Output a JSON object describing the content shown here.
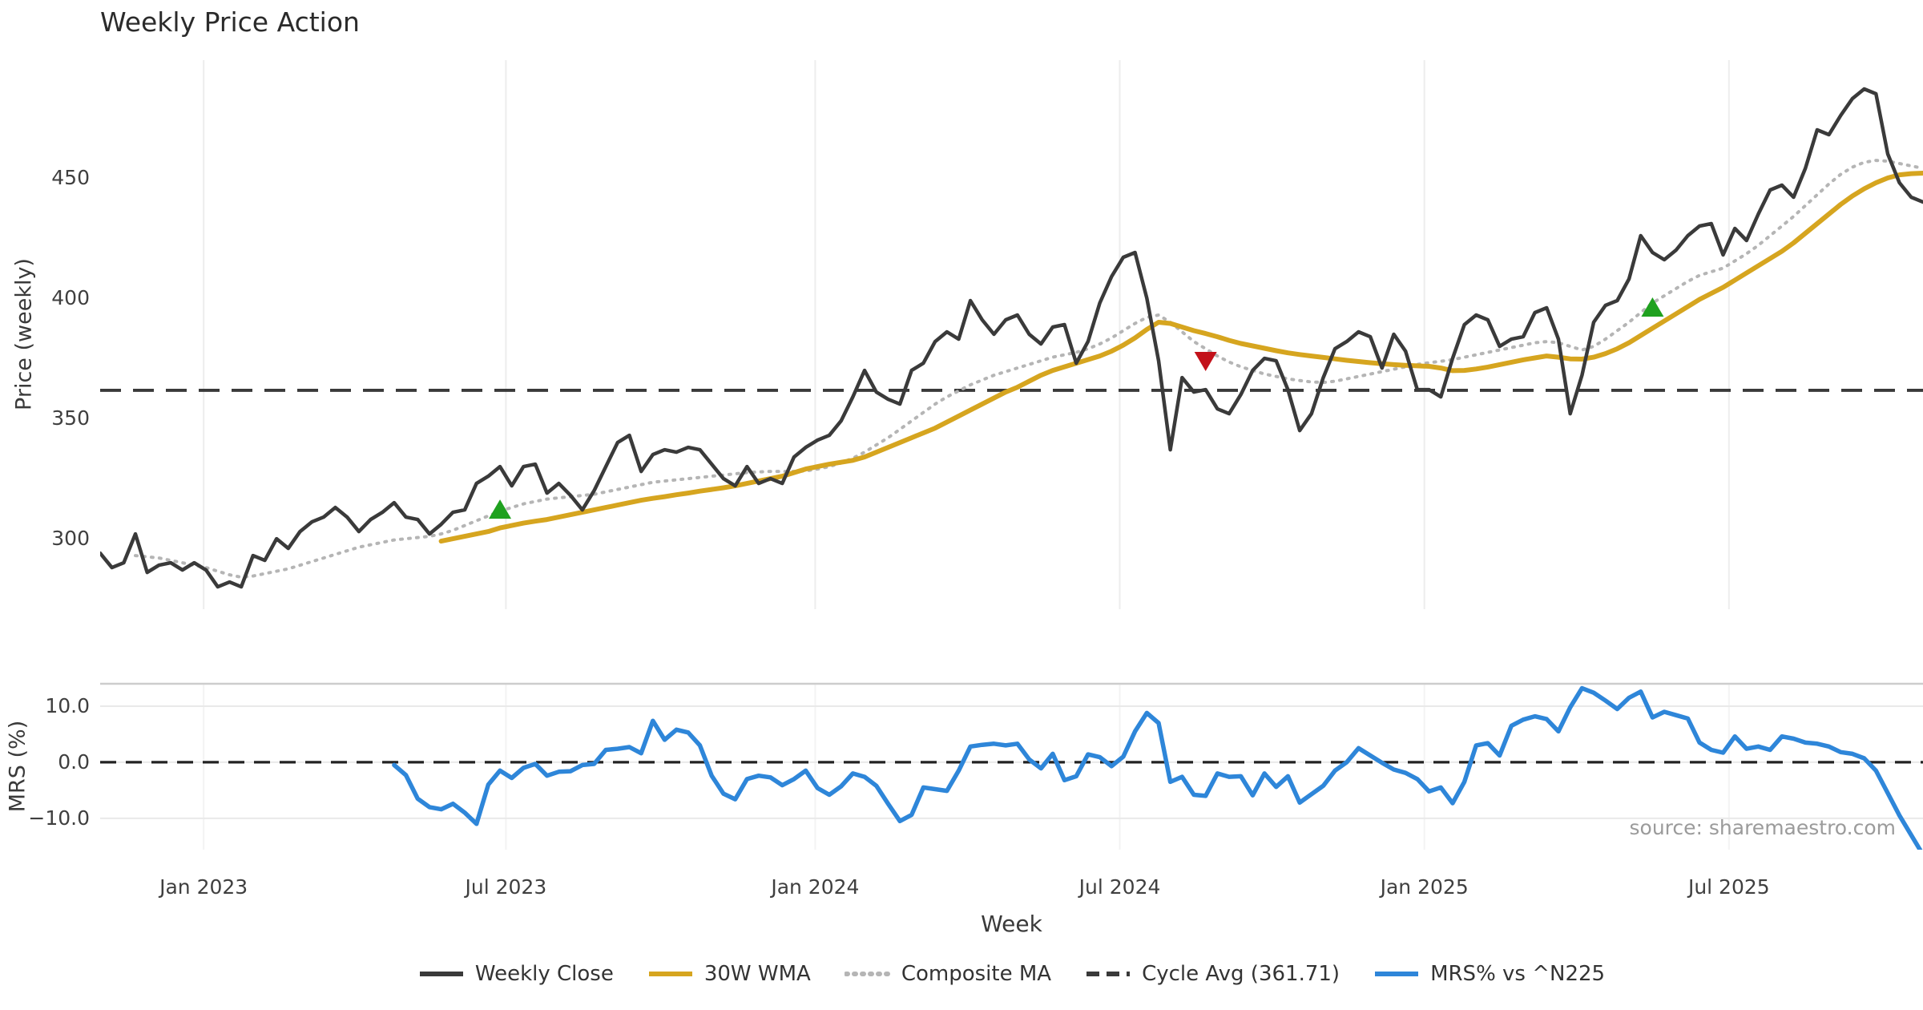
{
  "title": "Weekly Price Action",
  "source_note": "source: sharemaestro.com",
  "colors": {
    "weekly_close": "#3a3a3a",
    "wma_30w": "#d6a51f",
    "composite_ma": "#b5b5b5",
    "cycle_avg": "#3a3a3a",
    "mrs_line": "#2e86d9",
    "buy_marker": "#1fa11f",
    "sell_marker": "#c3121b",
    "grid_main": "#ededed",
    "grid_mrs": "#f3f3f3",
    "grid_mrs_h": "#e9e9e9",
    "panel_spine": "#cdcdcd",
    "background": "#ffffff"
  },
  "xaxis": {
    "label": "Week",
    "range_weeks": [
      0,
      155
    ],
    "ticks": [
      {
        "label": "Jan 2023",
        "week": 8.8
      },
      {
        "label": "Jul 2023",
        "week": 34.5
      },
      {
        "label": "Jan 2024",
        "week": 60.8
      },
      {
        "label": "Jul 2024",
        "week": 86.7
      },
      {
        "label": "Jan 2025",
        "week": 112.6
      },
      {
        "label": "Jul 2025",
        "week": 138.5
      }
    ]
  },
  "chart_data": [
    {
      "type": "line",
      "panel": "price",
      "title": "Weekly Price Action",
      "xlabel": "Week",
      "ylabel": "Price (weekly)",
      "x_unit": "week index (weekly closes, ~Nov 2022 through ~Oct 2025)",
      "ylim": [
        270.7,
        499.0
      ],
      "yticks": [
        450,
        400,
        350,
        300
      ],
      "ytick_labels": [
        "450",
        "400",
        "350",
        "300"
      ],
      "grid": "vertical-only",
      "series": [
        {
          "name": "Weekly Close",
          "style": "solid",
          "color": "#3a3a3a",
          "width": 4.5,
          "start_week": 0,
          "values": [
            294,
            288,
            290,
            302,
            286,
            289,
            290,
            287,
            290,
            287,
            280,
            282,
            280,
            293,
            291,
            300,
            296,
            303,
            307,
            309,
            313,
            309,
            303,
            308,
            311,
            315,
            309,
            308,
            302,
            306,
            311,
            312,
            323,
            326,
            330,
            322,
            330,
            331,
            319,
            323,
            318,
            312,
            320,
            330,
            340,
            343,
            328,
            335,
            337,
            336,
            338,
            337,
            331,
            325,
            322,
            330,
            323,
            325,
            323,
            334,
            338,
            341,
            343,
            349,
            359,
            370,
            361,
            358,
            356,
            370,
            373,
            382,
            386,
            383,
            399,
            391,
            385,
            391,
            393,
            385,
            381,
            388,
            389,
            373,
            382,
            398,
            409,
            417,
            419,
            400,
            374,
            337,
            367,
            361,
            362,
            354,
            352,
            360,
            370,
            375,
            374,
            362,
            345,
            352,
            367,
            379,
            382,
            386,
            384,
            371,
            385,
            378,
            362,
            362,
            359,
            375,
            389,
            393,
            391,
            380,
            383,
            384,
            394,
            396,
            383,
            352,
            368,
            390,
            397,
            399,
            408,
            426,
            419,
            416,
            420,
            426,
            430,
            431,
            418,
            429,
            424,
            435,
            445,
            447,
            442,
            454,
            470,
            468,
            476,
            483,
            487,
            485,
            460,
            448,
            442,
            440
          ]
        },
        {
          "name": "30W WMA",
          "style": "solid",
          "color": "#d6a51f",
          "width": 6,
          "start_week": 29,
          "values": [
            299,
            300,
            301,
            302,
            303,
            304.5,
            305.5,
            306.5,
            307.3,
            308,
            309,
            310,
            311,
            312,
            313,
            314,
            315,
            316,
            316.8,
            317.5,
            318.3,
            319,
            319.8,
            320.5,
            321.2,
            322,
            323,
            324,
            325,
            326,
            327.5,
            329,
            330,
            331,
            331.8,
            332.6,
            334,
            336,
            338,
            340,
            342,
            344,
            346,
            348.5,
            351,
            353.5,
            356,
            358.5,
            361,
            363,
            365.5,
            368,
            370,
            371.5,
            373,
            374.5,
            376,
            378,
            380.5,
            383.5,
            387,
            390,
            389.5,
            388,
            386.5,
            385.3,
            384,
            382.5,
            381.2,
            380.2,
            379.2,
            378.2,
            377.3,
            376.6,
            376,
            375.4,
            374.8,
            374.2,
            373.7,
            373.2,
            372.8,
            372.4,
            372.1,
            371.9,
            371.7,
            371,
            369.9,
            370,
            370.6,
            371.4,
            372.4,
            373.4,
            374.4,
            375.2,
            376,
            375.5,
            374.8,
            374.7,
            375.5,
            377,
            379,
            381.5,
            384.5,
            387.5,
            390.5,
            393.5,
            396.5,
            399.5,
            402,
            404.5,
            407.5,
            410.5,
            413.5,
            416.5,
            419.5,
            423,
            427,
            431,
            435,
            439,
            442.5,
            445.5,
            448,
            450,
            451.3,
            451.8,
            452
          ]
        },
        {
          "name": "Composite MA",
          "style": "dotted",
          "color": "#b5b5b5",
          "width": 4,
          "start_week": 3,
          "values": [
            293,
            292.5,
            292,
            291,
            290,
            289,
            288,
            286.5,
            285,
            284,
            284.5,
            285.5,
            286.5,
            287.5,
            289,
            290.5,
            292,
            293.5,
            295,
            296.5,
            297.5,
            298.5,
            299.5,
            300,
            300.5,
            301,
            302,
            303.5,
            305.5,
            307.5,
            309.5,
            311.5,
            313,
            314.5,
            315.5,
            316.5,
            317,
            317.5,
            318,
            318.5,
            319.5,
            320.5,
            321.5,
            322.5,
            323.5,
            324,
            324.5,
            325,
            325.5,
            326,
            326.5,
            327,
            327.5,
            327.8,
            328,
            328,
            328,
            328.2,
            329,
            330,
            331.5,
            333.5,
            336,
            339,
            342,
            345.5,
            349,
            352.5,
            356,
            359,
            361.5,
            364,
            366,
            368,
            369.5,
            371,
            372.5,
            374,
            375.5,
            376.5,
            377.5,
            379,
            381,
            383.5,
            386.5,
            389.5,
            392,
            393,
            390,
            386,
            382,
            379,
            376,
            373.5,
            371.5,
            370,
            368.5,
            367.5,
            366.5,
            365.8,
            365.2,
            365,
            365.5,
            366.5,
            367.5,
            368.5,
            369.5,
            370.5,
            371.5,
            372.5,
            373.2,
            373.8,
            374.5,
            375.5,
            376.5,
            377.5,
            378.5,
            379.5,
            380.5,
            381.5,
            382,
            381.5,
            380,
            378.5,
            380,
            383,
            386.5,
            390,
            394,
            398,
            401,
            404,
            407,
            409.5,
            411,
            412.5,
            415.5,
            418.5,
            422,
            426,
            430,
            434,
            438.5,
            443,
            447.5,
            451.5,
            454.5,
            456.5,
            457.3,
            457,
            456,
            455,
            454
          ]
        },
        {
          "name": "Cycle Avg (361.71)",
          "style": "dashed",
          "color": "#3a3a3a",
          "width": 3.8,
          "const_value": 361.71
        }
      ],
      "markers": {
        "buy": {
          "shape": "triangle-up",
          "color": "#1fa11f",
          "points": [
            {
              "week": 34,
              "price": 312
            },
            {
              "week": 132,
              "price": 396
            }
          ]
        },
        "sell": {
          "shape": "triangle-down",
          "color": "#c3121b",
          "points": [
            {
              "week": 94,
              "price": 374
            }
          ]
        }
      }
    },
    {
      "type": "line",
      "panel": "mrs",
      "ylabel": "MRS (%)",
      "ylim": [
        -15.6,
        14.0
      ],
      "yticks": [
        10.0,
        0.0,
        -10.0
      ],
      "ytick_labels": [
        "10.0",
        "0.0",
        "−10.0"
      ],
      "grid": "horizontal-and-vertical",
      "series": [
        {
          "name": "MRS% vs ^N225",
          "style": "solid",
          "color": "#2e86d9",
          "width": 5.5,
          "start_week": 25,
          "values": [
            -0.5,
            -2.3,
            -6.5,
            -8,
            -8.4,
            -7.4,
            -9,
            -11,
            -4,
            -1.5,
            -2.8,
            -1,
            -0.3,
            -2.4,
            -1.7,
            -1.6,
            -0.5,
            -0.3,
            2.2,
            2.4,
            2.7,
            1.6,
            7.4,
            4,
            5.8,
            5.3,
            3,
            -2.4,
            -5.6,
            -6.6,
            -3,
            -2.4,
            -2.7,
            -4.1,
            -3,
            -1.5,
            -4.6,
            -5.8,
            -4.3,
            -2,
            -2.6,
            -4.2,
            -7.4,
            -10.5,
            -9.4,
            -4.5,
            -4.8,
            -5.1,
            -1.5,
            2.8,
            3.1,
            3.3,
            3,
            3.3,
            0.5,
            -1.1,
            1.5,
            -3.2,
            -2.5,
            1.4,
            0.9,
            -0.7,
            1,
            5.5,
            8.8,
            7,
            -3.5,
            -2.6,
            -5.8,
            -6,
            -2,
            -2.6,
            -2.5,
            -5.9,
            -2,
            -4.4,
            -2.5,
            -7.2,
            -5.7,
            -4.2,
            -1.5,
            0,
            2.5,
            1.2,
            -0.1,
            -1.3,
            -1.9,
            -3,
            -5.2,
            -4.5,
            -7.3,
            -3.5,
            3,
            3.4,
            1.2,
            6.5,
            7.6,
            8.2,
            7.7,
            5.5,
            9.8,
            13.2,
            12.4,
            11,
            9.5,
            11.5,
            12.6,
            8,
            9,
            8.4,
            7.8,
            3.5,
            2.2,
            1.7,
            4.6,
            2.4,
            2.8,
            2.2,
            4.6,
            4.2,
            3.5,
            3.3,
            2.8,
            1.8,
            1.5,
            0.7,
            -1.5,
            -5.5,
            -9.5,
            -13,
            -16.5
          ]
        },
        {
          "name": "zero line",
          "style": "dashed",
          "color": "#222222",
          "width": 3.2,
          "const_value": 0
        }
      ]
    }
  ],
  "legend": [
    {
      "label": "Weekly Close",
      "color": "#3a3a3a",
      "dash": "solid"
    },
    {
      "label": "30W WMA",
      "color": "#d6a51f",
      "dash": "solid"
    },
    {
      "label": "Composite MA",
      "color": "#b5b5b5",
      "dash": "dotted"
    },
    {
      "label": "Cycle Avg (361.71)",
      "color": "#3a3a3a",
      "dash": "dashed"
    },
    {
      "label": "MRS% vs ^N225",
      "color": "#2e86d9",
      "dash": "solid"
    }
  ]
}
